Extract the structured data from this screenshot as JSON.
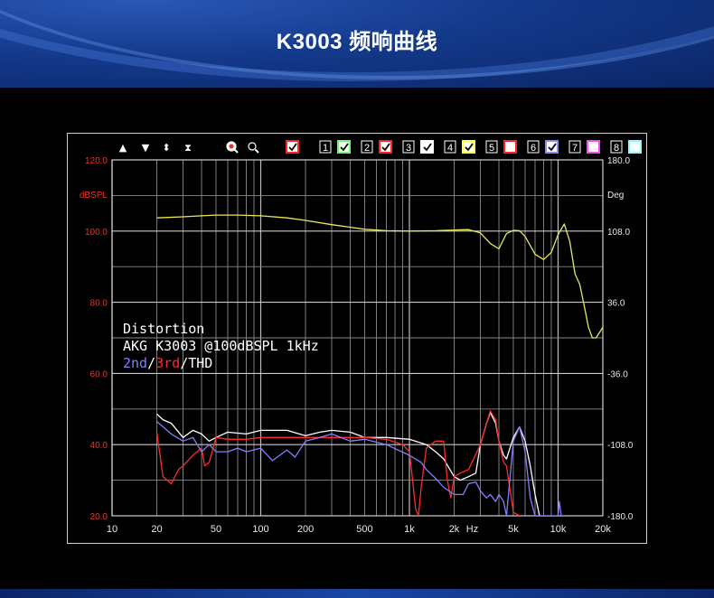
{
  "header": {
    "title": "K3003 频响曲线"
  },
  "toolbar": {
    "arrows": [
      "▲",
      "▼",
      "⬍",
      "⧗"
    ],
    "zoom_in_icon": "zoom-in-icon",
    "zoom_out_icon": "zoom-out-icon",
    "all_checked": true,
    "channels": [
      {
        "label": "1",
        "color": "#66ff66",
        "checked": true
      },
      {
        "label": "2",
        "color": "#ff2222",
        "checked": true
      },
      {
        "label": "3",
        "color": "#ffffff",
        "checked": true
      },
      {
        "label": "4",
        "color": "#ffff44",
        "checked": true
      },
      {
        "label": "5",
        "color": "#ff2222",
        "checked": false
      },
      {
        "label": "6",
        "color": "#8888ff",
        "checked": true
      },
      {
        "label": "7",
        "color": "#ff44ff",
        "checked": false
      },
      {
        "label": "8",
        "color": "#88ffff",
        "checked": false
      }
    ]
  },
  "annotation": {
    "line1": "Distortion",
    "line2": "AKG K3003 @100dBSPL 1kHz",
    "line3_2nd": "2nd",
    "line3_sep1": "/",
    "line3_3rd": "3rd",
    "line3_sep2": "/",
    "line3_thd": "THD"
  },
  "chart_data": {
    "type": "line",
    "title": "",
    "xlabel": "Hz",
    "ylabel": "dBSPL",
    "ylabel_right": "Deg",
    "xscale": "log",
    "xlim": [
      10,
      20000
    ],
    "ylim": [
      20,
      120
    ],
    "ylim_right": [
      -180,
      180
    ],
    "grid": true,
    "x_ticks": [
      {
        "v": 10,
        "label": "10"
      },
      {
        "v": 20,
        "label": "20"
      },
      {
        "v": 50,
        "label": "50"
      },
      {
        "v": 100,
        "label": "100"
      },
      {
        "v": 200,
        "label": "200"
      },
      {
        "v": 500,
        "label": "500"
      },
      {
        "v": 1000,
        "label": "1k"
      },
      {
        "v": 2000,
        "label": "2k"
      },
      {
        "v": 5000,
        "label": "5k"
      },
      {
        "v": 10000,
        "label": "10k"
      },
      {
        "v": 20000,
        "label": "20k"
      }
    ],
    "y_ticks_left": [
      "120.0",
      "100.0",
      "80.0",
      "60.0",
      "40.0",
      "20.0"
    ],
    "y_ticks_left_values": [
      120,
      100,
      80,
      60,
      40,
      20
    ],
    "y_ticks_right": [
      "180.0",
      "108.0",
      "36.0",
      "-36.0",
      "-108.0",
      "-180.0"
    ],
    "series": [
      {
        "color": "#e8e85a",
        "x": [
          20,
          30,
          40,
          50,
          70,
          100,
          150,
          200,
          300,
          500,
          700,
          1000,
          1500,
          2000,
          2500,
          3000,
          3500,
          4000,
          4500,
          5000,
          5500,
          6000,
          7000,
          8000,
          9000,
          10000,
          11000,
          12000,
          13000,
          14000,
          15000,
          16000,
          17000,
          18000,
          19000,
          20000
        ],
        "values": [
          103.7,
          104.0,
          104.3,
          104.5,
          104.5,
          104.3,
          103.7,
          103.0,
          101.8,
          100.5,
          100.1,
          100.0,
          100.1,
          100.3,
          100.4,
          99.5,
          96.5,
          95.0,
          99.3,
          100.2,
          100.1,
          98.5,
          93.5,
          92.0,
          94.0,
          99.0,
          102.0,
          97.0,
          88.0,
          85.0,
          79.0,
          73.0,
          70.0,
          70.0,
          71.5,
          73.0
        ]
      },
      {
        "color": "#ffffff",
        "x": [
          20,
          22,
          25,
          30,
          35,
          40,
          45,
          50,
          60,
          80,
          100,
          150,
          200,
          250,
          300,
          400,
          500,
          700,
          1000,
          1300,
          1500,
          1700,
          2000,
          2200,
          2500,
          2800,
          3000,
          3300,
          3500,
          3800,
          4000,
          4300,
          4500,
          5000,
          5500,
          6000,
          6500,
          7000,
          7500
        ],
        "values": [
          48.6,
          47.0,
          46.0,
          42.0,
          44.0,
          43.0,
          41.0,
          42.0,
          43.5,
          43.0,
          44.0,
          44.0,
          42.5,
          43.5,
          44.0,
          43.5,
          42.0,
          42.0,
          41.5,
          40.0,
          38.0,
          36.0,
          31.0,
          30.0,
          31.0,
          32.0,
          40.0,
          46.0,
          49.0,
          46.0,
          41.0,
          37.0,
          36.0,
          42.0,
          45.0,
          41.0,
          34.0,
          26.0,
          20.0
        ]
      },
      {
        "color": "#ff2a2a",
        "x": [
          20,
          22,
          25,
          28,
          30,
          35,
          40,
          42,
          45,
          50,
          60,
          80,
          100,
          150,
          200,
          300,
          500,
          700,
          900,
          1000,
          1050,
          1100,
          1150,
          1200,
          1300,
          1500,
          1700,
          1800,
          1900,
          2000,
          2200,
          2500,
          3000,
          3300,
          3500,
          3800,
          4000,
          4300,
          4500,
          5000,
          5500
        ],
        "values": [
          43.5,
          31.0,
          29.0,
          33.0,
          34.0,
          37.0,
          39.0,
          34.0,
          35.0,
          42.0,
          41.5,
          41.5,
          42.0,
          42.0,
          42.0,
          42.0,
          42.0,
          41.5,
          40.0,
          38.0,
          30.0,
          22.0,
          20.0,
          28.0,
          39.0,
          41.0,
          41.0,
          30.0,
          25.0,
          31.0,
          32.0,
          33.0,
          40.0,
          46.0,
          49.5,
          47.0,
          41.0,
          35.0,
          34.0,
          21.0,
          20.0
        ]
      },
      {
        "color": "#8080ff",
        "x": [
          20,
          25,
          30,
          35,
          40,
          45,
          50,
          60,
          70,
          80,
          100,
          120,
          150,
          170,
          200,
          250,
          300,
          400,
          500,
          700,
          1000,
          1200,
          1300,
          1500,
          1700,
          2000,
          2300,
          2500,
          2800,
          3000,
          3300,
          3500,
          3800,
          4000,
          4300,
          4500,
          5000,
          5500,
          6000,
          6500,
          7000,
          7500,
          8000,
          9000,
          10000,
          10200,
          10500
        ],
        "values": [
          46.5,
          43.0,
          41.0,
          42.0,
          38.0,
          40.0,
          38.0,
          38.0,
          39.0,
          38.0,
          39.0,
          35.5,
          38.5,
          36.5,
          41.0,
          42.0,
          43.0,
          41.0,
          41.5,
          40.0,
          37.0,
          35.0,
          33.0,
          30.5,
          28.0,
          26.0,
          26.0,
          29.0,
          29.5,
          27.0,
          25.0,
          26.0,
          24.0,
          26.0,
          24.0,
          20.0,
          41.0,
          45.0,
          38.0,
          25.0,
          20.0,
          20.0,
          20.0,
          20.0,
          20.0,
          24.0,
          20.0
        ]
      }
    ]
  }
}
